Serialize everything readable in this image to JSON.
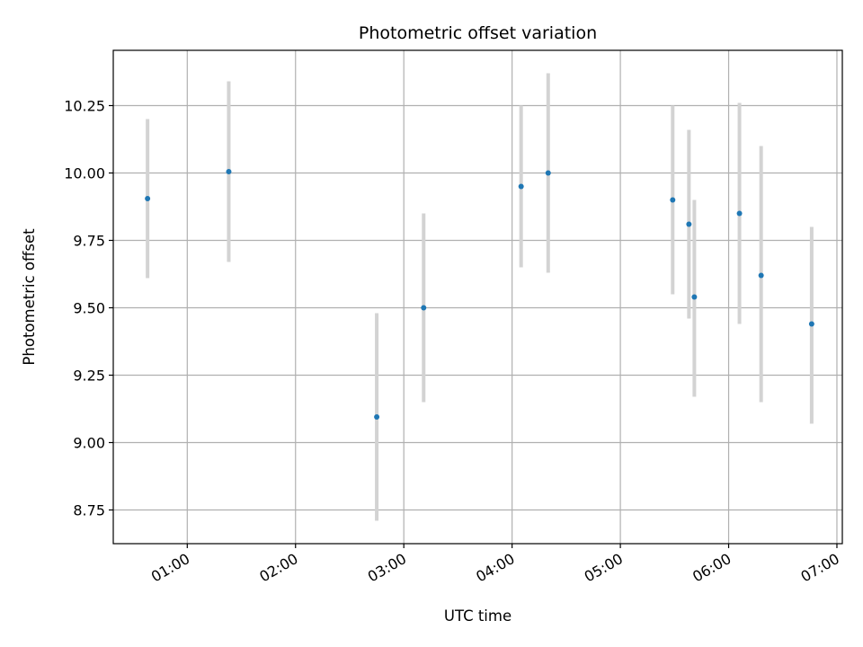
{
  "chart_data": {
    "type": "scatter",
    "title": "Photometric offset variation",
    "xlabel": "UTC time",
    "ylabel": "Photometric offset",
    "xlim": [
      "00:19",
      "07:03"
    ],
    "ylim": [
      8.625,
      10.455
    ],
    "grid": true,
    "x_ticks": [
      "01:00",
      "02:00",
      "03:00",
      "04:00",
      "05:00",
      "06:00",
      "07:00"
    ],
    "y_ticks": [
      "8.75",
      "9.00",
      "9.25",
      "9.50",
      "9.75",
      "10.00",
      "10.25"
    ],
    "series": [
      {
        "marker_color": "#1f77b4",
        "errorbar_color": "#d3d3d3",
        "points": [
          {
            "x": "00:38",
            "y": 9.905,
            "ylo": 9.61,
            "yhi": 10.2
          },
          {
            "x": "01:23",
            "y": 10.005,
            "ylo": 9.67,
            "yhi": 10.34
          },
          {
            "x": "02:45",
            "y": 9.095,
            "ylo": 8.71,
            "yhi": 9.48
          },
          {
            "x": "03:11",
            "y": 9.5,
            "ylo": 9.15,
            "yhi": 9.85
          },
          {
            "x": "04:05",
            "y": 9.95,
            "ylo": 9.65,
            "yhi": 10.25
          },
          {
            "x": "04:20",
            "y": 10.0,
            "ylo": 9.63,
            "yhi": 10.37
          },
          {
            "x": "05:29",
            "y": 9.9,
            "ylo": 9.55,
            "yhi": 10.25
          },
          {
            "x": "05:38",
            "y": 9.81,
            "ylo": 9.46,
            "yhi": 10.16
          },
          {
            "x": "05:41",
            "y": 9.54,
            "ylo": 9.17,
            "yhi": 9.9
          },
          {
            "x": "06:06",
            "y": 9.85,
            "ylo": 9.44,
            "yhi": 10.26
          },
          {
            "x": "06:18",
            "y": 9.62,
            "ylo": 9.15,
            "yhi": 10.1
          },
          {
            "x": "06:46",
            "y": 9.44,
            "ylo": 9.07,
            "yhi": 9.8
          }
        ]
      }
    ]
  }
}
